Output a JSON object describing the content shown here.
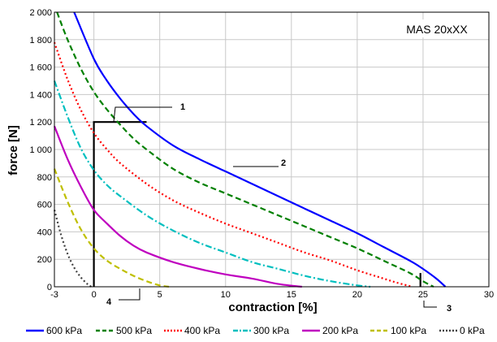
{
  "chart_data": {
    "type": "line",
    "title": "",
    "model_label": "MAS 20xXX",
    "xlabel": "contraction  [%]",
    "ylabel": "force [N]",
    "xlim": [
      -3,
      30
    ],
    "ylim": [
      0,
      2000
    ],
    "x_ticks": [
      -3,
      0,
      5,
      10,
      15,
      20,
      25,
      30
    ],
    "y_ticks": [
      0,
      200,
      400,
      600,
      800,
      1000,
      1200,
      1400,
      1600,
      1800,
      2000
    ],
    "y_tick_labels": [
      "0",
      "200",
      "400",
      "600",
      "800",
      "1 000",
      "1 200",
      "1 400",
      "1 600",
      "1 800",
      "2 000"
    ],
    "grid": true,
    "legend_position": "bottom",
    "series": [
      {
        "name": "600 kPa",
        "color": "#0000ff",
        "dash": "solid",
        "x": [
          -1.5,
          0,
          1,
          2,
          3,
          4,
          6,
          8,
          10,
          12,
          14,
          16,
          18,
          20,
          22,
          24,
          25,
          26,
          26.7
        ],
        "y": [
          2000,
          1660,
          1500,
          1370,
          1260,
          1170,
          1030,
          930,
          840,
          750,
          660,
          570,
          480,
          390,
          290,
          190,
          130,
          60,
          0
        ]
      },
      {
        "name": "500 kPa",
        "color": "#008000",
        "dash": "dash",
        "x": [
          -2.8,
          -2,
          -1,
          0,
          1,
          2,
          3,
          4,
          6,
          8,
          10,
          12,
          14,
          16,
          18,
          20,
          22,
          24,
          25,
          25.8
        ],
        "y": [
          2000,
          1800,
          1590,
          1420,
          1290,
          1180,
          1080,
          1000,
          860,
          760,
          680,
          600,
          520,
          440,
          360,
          280,
          190,
          100,
          40,
          0
        ]
      },
      {
        "name": "400 kPa",
        "color": "#ff0000",
        "dash": "dot",
        "x": [
          -3,
          -2,
          -1,
          0,
          1,
          2,
          4,
          6,
          8,
          10,
          12,
          14,
          16,
          18,
          20,
          22,
          23,
          24.2
        ],
        "y": [
          1780,
          1510,
          1290,
          1120,
          1000,
          900,
          750,
          630,
          540,
          460,
          390,
          320,
          250,
          190,
          120,
          60,
          30,
          0
        ]
      },
      {
        "name": "300 kPa",
        "color": "#00bfbf",
        "dash": "dashdot",
        "x": [
          -3,
          -2,
          -1,
          0,
          1,
          2,
          4,
          6,
          8,
          10,
          12,
          14,
          16,
          18,
          20,
          21
        ],
        "y": [
          1500,
          1240,
          1010,
          850,
          740,
          660,
          520,
          410,
          320,
          250,
          180,
          130,
          80,
          40,
          10,
          0
        ]
      },
      {
        "name": "200 kPa",
        "color": "#bf00bf",
        "dash": "solid",
        "x": [
          -3,
          -2,
          -1,
          0,
          1,
          2,
          3,
          4,
          6,
          8,
          10,
          12,
          14,
          15.8
        ],
        "y": [
          1170,
          930,
          730,
          560,
          460,
          370,
          300,
          250,
          180,
          130,
          90,
          60,
          20,
          0
        ]
      },
      {
        "name": "100 kPa",
        "color": "#bfbf00",
        "dash": "dash",
        "x": [
          -3,
          -2,
          -1,
          0,
          1,
          2,
          3,
          4,
          5,
          5.7
        ],
        "y": [
          860,
          620,
          420,
          280,
          190,
          130,
          80,
          40,
          10,
          0
        ]
      },
      {
        "name": "0 kPa",
        "color": "#404040",
        "dash": "dot",
        "x": [
          -3,
          -2.5,
          -2,
          -1.5,
          -1,
          -0.5,
          -0.2
        ],
        "y": [
          560,
          380,
          240,
          140,
          70,
          20,
          0
        ]
      }
    ],
    "annotations": [
      {
        "label": "1",
        "x": 2.5,
        "y": 1200
      },
      {
        "label": "2",
        "x": 14,
        "y": 870
      },
      {
        "label": "3",
        "x": 25,
        "y": 0
      },
      {
        "label": "4",
        "x": 3.5,
        "y": 0
      }
    ],
    "work_range_lines": [
      {
        "x": [
          0,
          0,
          4
        ],
        "y": [
          0,
          1200,
          1200
        ]
      },
      {
        "x": [
          24.8,
          24.8
        ],
        "y": [
          0,
          100
        ]
      }
    ]
  }
}
